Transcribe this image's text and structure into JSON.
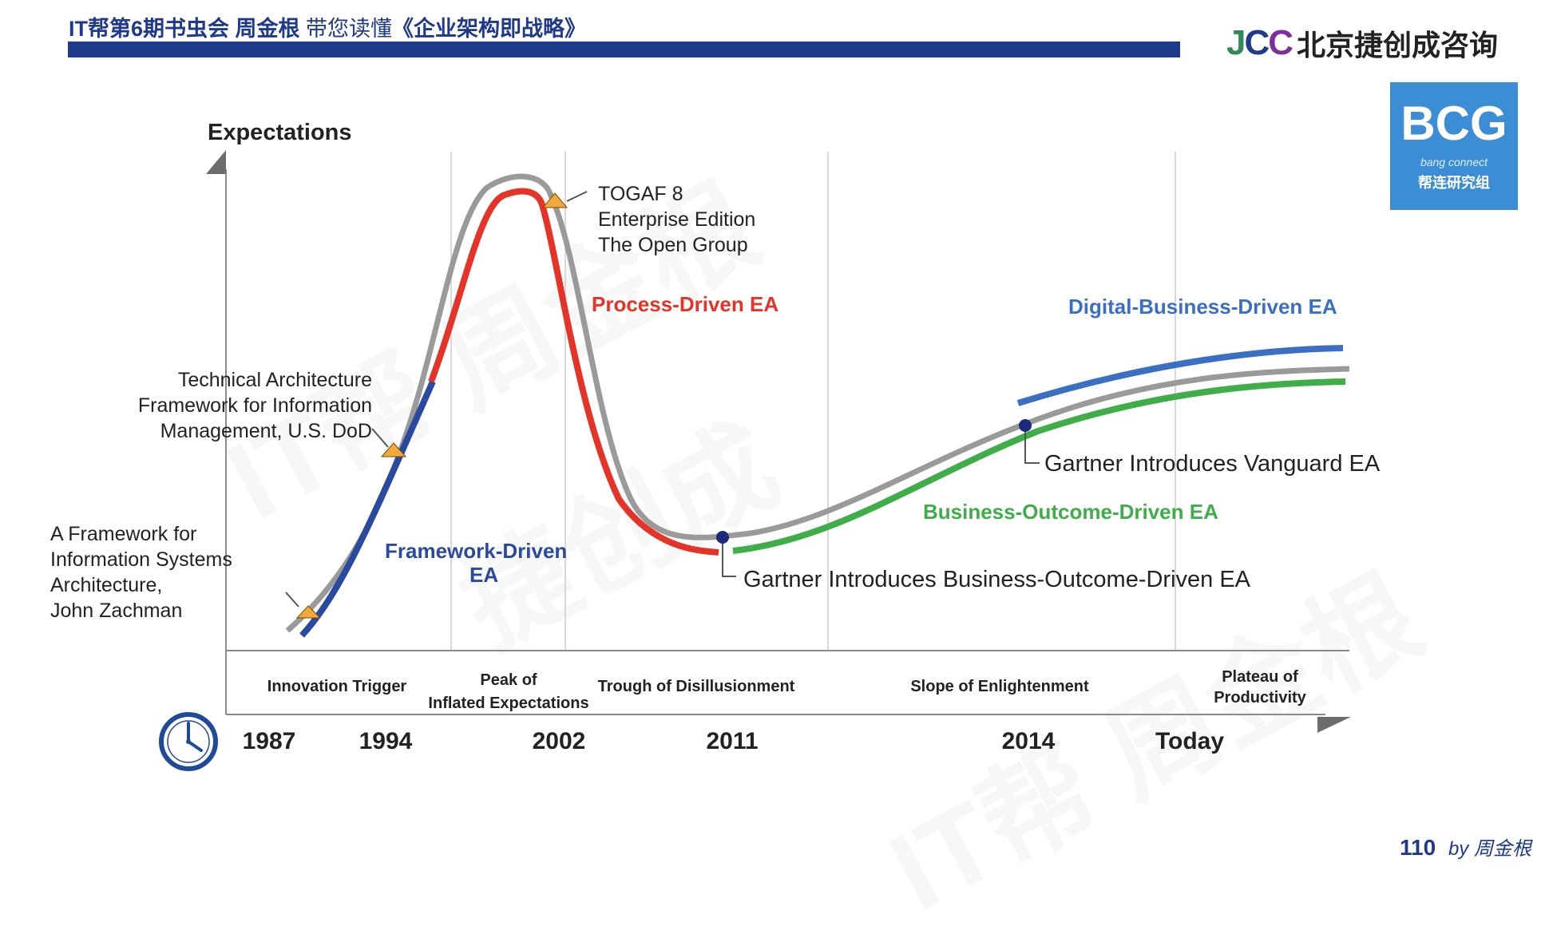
{
  "header": {
    "title_bold": "IT帮第6期书虫会 周金根",
    "title_light": "带您读懂",
    "title_book": "《企业架构即战略》"
  },
  "logo": {
    "mark_j": "J",
    "mark_c1": "C",
    "mark_c2": "C",
    "text": "北京捷创成咨询"
  },
  "badge": {
    "big": "BCG",
    "small": "bang connect",
    "cn": "帮连研究组"
  },
  "watermark": [
    "IT帮 周金根",
    "捷创成",
    "IT帮 周金根"
  ],
  "diagram": {
    "y_axis_label": "Expectations",
    "phases": [
      "Innovation Trigger",
      "Peak of",
      "Inflated Expectations",
      "Trough of Disillusionment",
      "Slope of Enlightenment",
      "Plateau of",
      "Productivity"
    ],
    "years": [
      "1987",
      "1994",
      "2002",
      "2011",
      "2014",
      "Today"
    ],
    "curves": {
      "framework_1": "Framework-Driven",
      "framework_2": "EA",
      "process": "Process-Driven EA",
      "digital": "Digital-Business-Driven EA",
      "outcome": "Business-Outcome-Driven EA"
    },
    "annotations": {
      "zachman": [
        "A Framework for",
        "Information Systems",
        "Architecture,",
        "John Zachman"
      ],
      "tafim": [
        "Technical Architecture",
        "Framework for Information",
        "Management, U.S. DoD"
      ],
      "togaf": [
        "TOGAF 8",
        "Enterprise Edition",
        "The Open Group"
      ],
      "vanguard": "Gartner Introduces Vanguard EA",
      "bode": "Gartner Introduces Business-Outcome-Driven EA"
    },
    "colors": {
      "framework": "#2a4aa0",
      "process": "#e53327",
      "digital": "#3a6fc4",
      "outcome": "#3fae49",
      "hype": "#9a9a9a"
    }
  },
  "footer": {
    "page": "110",
    "by": "by 周金根"
  }
}
